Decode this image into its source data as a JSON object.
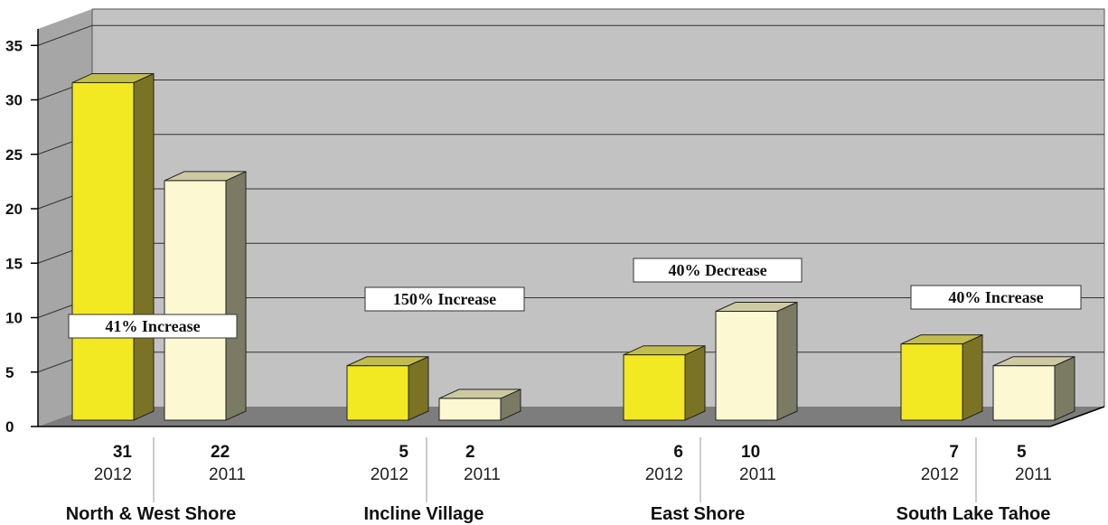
{
  "chart_data": {
    "type": "bar",
    "categories": [
      "North & West Shore",
      "Incline Village",
      "East Shore",
      "South Lake Tahoe"
    ],
    "series": [
      {
        "name": "2012",
        "values": [
          31,
          5,
          6,
          7
        ],
        "color": "#f3e922"
      },
      {
        "name": "2011",
        "values": [
          22,
          2,
          10,
          5
        ],
        "color": "#fbf8d2"
      }
    ],
    "annotations": [
      "41% Increase",
      "150% Increase",
      "40% Decrease",
      "40% Increase"
    ],
    "yticks": [
      "0",
      "5",
      "10",
      "15",
      "20",
      "25",
      "30",
      "35"
    ],
    "ylim": [
      0,
      35
    ],
    "grid": true,
    "colors": {
      "back_wall": "#c2c2c2",
      "floor": "#7d7d7d",
      "side_wall": "#a6a6a6",
      "side_2012": "#7a7326",
      "side_2011": "#7b7b64",
      "top_2012": "#c2bc4c",
      "top_2011": "#cdcaa2"
    }
  }
}
